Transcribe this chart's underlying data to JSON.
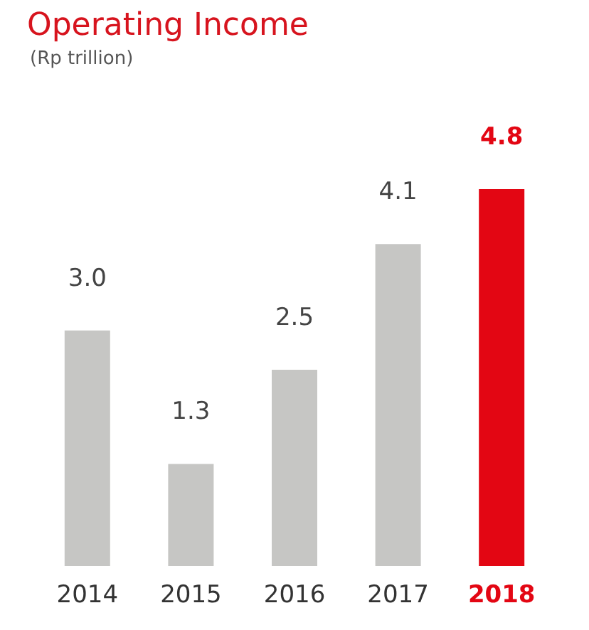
{
  "chart_data": {
    "type": "bar",
    "title": "Operating Income",
    "subtitle": "(Rp trillion)",
    "categories": [
      "2014",
      "2015",
      "2016",
      "2017",
      "2018"
    ],
    "values": [
      3.0,
      1.3,
      2.5,
      4.1,
      4.8
    ],
    "value_labels": [
      "3.0",
      "1.3",
      "2.5",
      "4.1",
      "4.8"
    ],
    "colors": [
      "#c6c6c4",
      "#c6c6c4",
      "#c6c6c4",
      "#c6c6c4",
      "#e30613"
    ]
  }
}
